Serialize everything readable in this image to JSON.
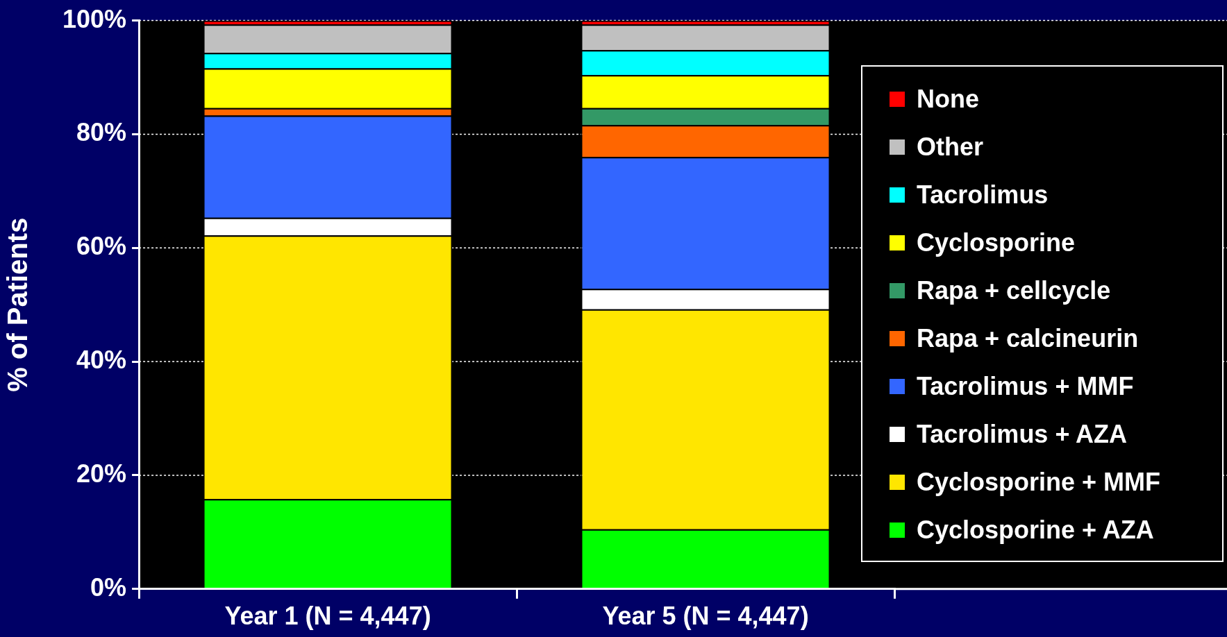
{
  "chart_data": {
    "type": "bar",
    "stacked": true,
    "ylabel": "% of Patients",
    "categories": [
      "Year 1 (N = 4,447)",
      "Year 5 (N = 4,447)"
    ],
    "series": [
      {
        "name": "Cyclosporine + AZA",
        "color": "#00ff00",
        "values": [
          15.8,
          10.5
        ]
      },
      {
        "name": "Cyclosporine + MMF",
        "color": "#ffe600",
        "values": [
          46.4,
          38.7
        ]
      },
      {
        "name": "Tacrolimus + AZA",
        "color": "#ffffff",
        "values": [
          3.1,
          3.6
        ]
      },
      {
        "name": "Tacrolimus + MMF",
        "color": "#3366ff",
        "values": [
          18.0,
          23.2
        ]
      },
      {
        "name": "Rapa + calcineurin",
        "color": "#ff6600",
        "values": [
          1.3,
          5.6
        ]
      },
      {
        "name": "Rapa + cellcycle",
        "color": "#339966",
        "values": [
          0,
          3.0
        ]
      },
      {
        "name": "Cyclosporine",
        "color": "#ffff00",
        "values": [
          7.0,
          5.8
        ]
      },
      {
        "name": "Tacrolimus",
        "color": "#00ffff",
        "values": [
          2.7,
          4.4
        ]
      },
      {
        "name": "Other",
        "color": "#c0c0c0",
        "values": [
          5.0,
          4.5
        ]
      },
      {
        "name": "None",
        "color": "#ff0000",
        "values": [
          0.7,
          0.7
        ]
      }
    ],
    "ylim": [
      0,
      100
    ],
    "yticks": [
      {
        "value": 0,
        "label": "0%"
      },
      {
        "value": 20,
        "label": "20%"
      },
      {
        "value": 40,
        "label": "40%"
      },
      {
        "value": 60,
        "label": "60%"
      },
      {
        "value": 80,
        "label": "80%"
      },
      {
        "value": 100,
        "label": "100%"
      }
    ],
    "grid": "y",
    "legend": "right"
  }
}
